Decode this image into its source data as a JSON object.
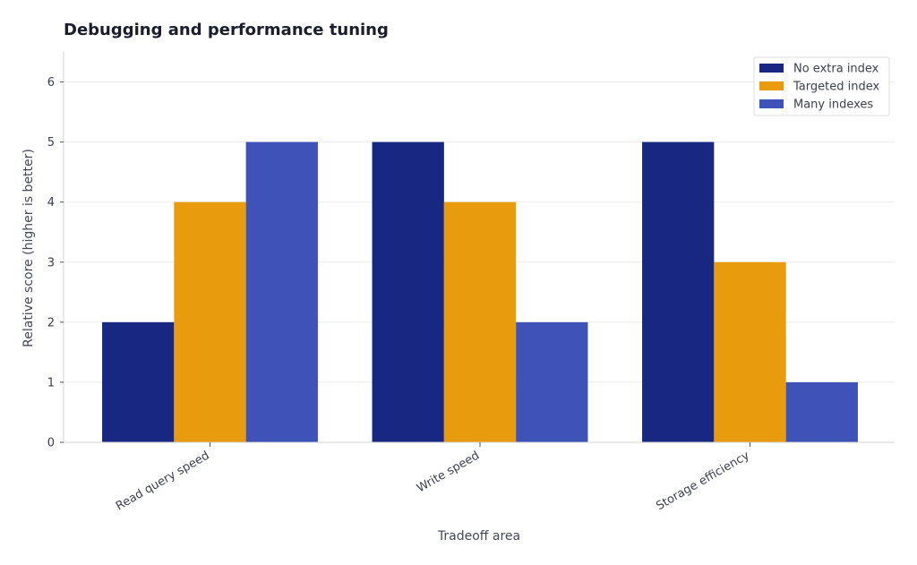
{
  "chart_data": {
    "type": "bar",
    "title": "Debugging and performance tuning",
    "xlabel": "Tradeoff area",
    "ylabel": "Relative score (higher is better)",
    "categories": [
      "Read query speed",
      "Write speed",
      "Storage efficiency"
    ],
    "series": [
      {
        "name": "No extra index",
        "values": [
          2,
          5,
          5
        ],
        "color": "#172782"
      },
      {
        "name": "Targeted index",
        "values": [
          4,
          4,
          3
        ],
        "color": "#e89b0c"
      },
      {
        "name": "Many indexes",
        "values": [
          5,
          2,
          1
        ],
        "color": "#3f52b8"
      }
    ],
    "ylim": [
      0,
      6.5
    ],
    "yticks": [
      0,
      1,
      2,
      3,
      4,
      5,
      6
    ],
    "grid": true,
    "legend_position": "top-right"
  }
}
